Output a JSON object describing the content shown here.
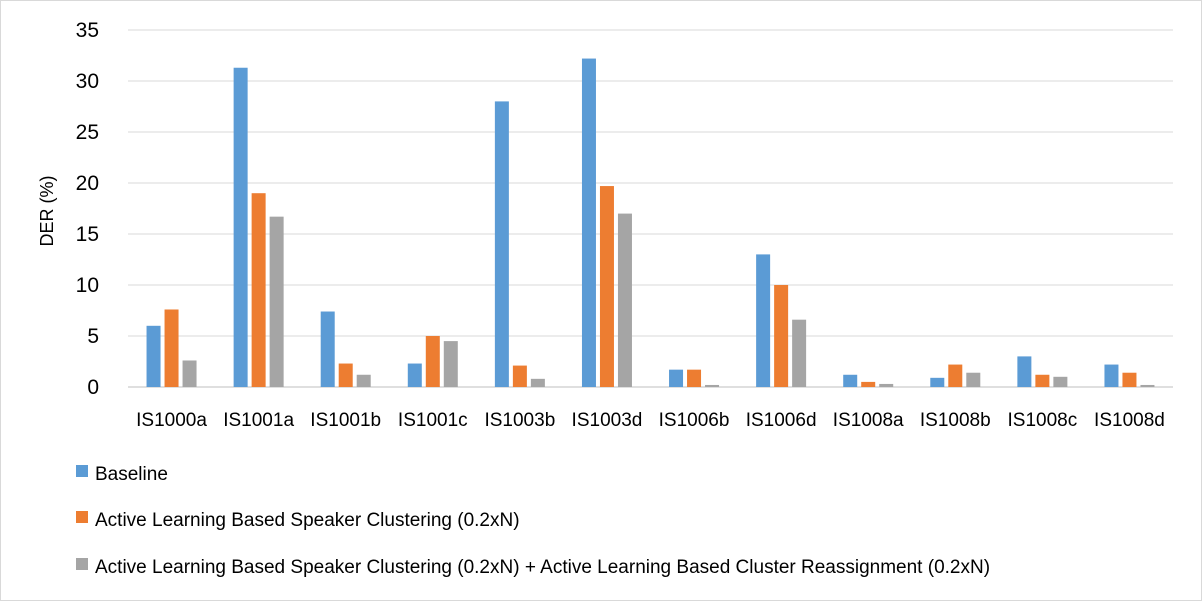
{
  "chart_data": {
    "type": "bar",
    "title": "",
    "xlabel": "",
    "ylabel": "DER (%)",
    "ylim": [
      0,
      35
    ],
    "yticks": [
      0,
      5,
      10,
      15,
      20,
      25,
      30,
      35
    ],
    "grid": true,
    "legend_position": "bottom",
    "categories": [
      "IS1000a",
      "IS1001a",
      "IS1001b",
      "IS1001c",
      "IS1003b",
      "IS1003d",
      "IS1006b",
      "IS1006d",
      "IS1008a",
      "IS1008b",
      "IS1008c",
      "IS1008d"
    ],
    "series": [
      {
        "name": "Baseline",
        "color": "#5B9BD5",
        "values": [
          6.0,
          31.3,
          7.4,
          2.3,
          28.0,
          32.2,
          1.7,
          13.0,
          1.2,
          0.9,
          3.0,
          2.2
        ]
      },
      {
        "name": "Active Learning Based Speaker Clustering (0.2xN)",
        "color": "#ED7D31",
        "values": [
          7.6,
          19.0,
          2.3,
          5.0,
          2.1,
          19.7,
          1.7,
          10.0,
          0.5,
          2.2,
          1.2,
          1.4
        ]
      },
      {
        "name": "Active Learning Based Speaker Clustering (0.2xN) + Active Learning Based Cluster Reassignment (0.2xN)",
        "color": "#A5A5A5",
        "values": [
          2.6,
          16.7,
          1.2,
          4.5,
          0.8,
          17.0,
          0.2,
          6.6,
          0.3,
          1.4,
          1.0,
          0.2
        ]
      }
    ]
  },
  "colors": {
    "gridline": "#d9d9d9",
    "axis": "#bfbfbf",
    "border": "#d9d9d9"
  }
}
